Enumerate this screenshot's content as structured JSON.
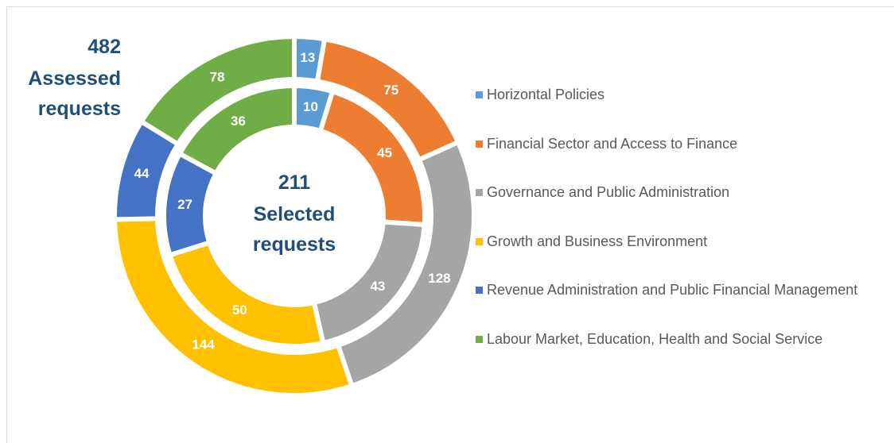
{
  "chart_data": {
    "type": "nested-donut",
    "categories": [
      "Horizontal Policies",
      "Financial Sector and Access to Finance",
      "Governance and Public Administration",
      "Growth and Business Environment",
      "Revenue Administration and Public Financial Management",
      "Labour Market, Education, Health and Social Service"
    ],
    "colors": [
      "#5b9bd5",
      "#ed7d31",
      "#a5a5a5",
      "#ffc000",
      "#4472c4",
      "#70ad47"
    ],
    "series": [
      {
        "values": [
          13,
          75,
          128,
          144,
          44,
          78
        ]
      },
      {
        "values": [
          10,
          45,
          43,
          50,
          27,
          36
        ]
      }
    ],
    "annotations": {
      "outer_total": "482",
      "outer_label": "Assessed requests",
      "inner_total": "211",
      "inner_label": "Selected requests"
    },
    "legend": "right"
  }
}
